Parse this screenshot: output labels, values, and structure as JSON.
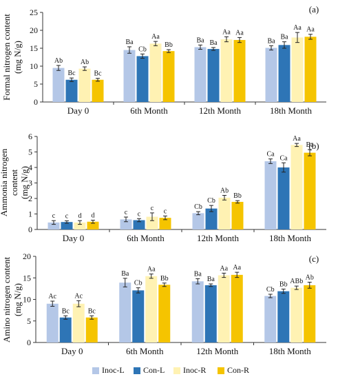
{
  "colors": {
    "Inoc-L": "#b4c7e7",
    "Con-L": "#2e75b6",
    "Inoc-R": "#fff2b3",
    "Con-R": "#f5c400"
  },
  "legend": [
    "Inoc-L",
    "Con-L",
    "Inoc-R",
    "Con-R"
  ],
  "chart_data": [
    {
      "type": "bar",
      "panel_label": "(a)",
      "ylabel": [
        "Formal nitrogen content",
        "(mg N/g)"
      ],
      "categories": [
        "Day 0",
        "6th Month",
        "12th Month",
        "18th Month"
      ],
      "ylim": [
        0,
        25
      ],
      "yticks": [
        0,
        5,
        10,
        15,
        20,
        25
      ],
      "grid": false,
      "series": [
        {
          "name": "Inoc-L",
          "values": [
            9.5,
            14.5,
            15.3,
            15.1
          ],
          "errors": [
            0.7,
            0.9,
            0.6,
            0.6
          ],
          "labels": [
            "Ab",
            "Ba",
            "Ba",
            "Ba"
          ]
        },
        {
          "name": "Con-L",
          "values": [
            6.2,
            12.8,
            14.8,
            15.9
          ],
          "errors": [
            0.5,
            0.6,
            0.4,
            0.9
          ],
          "labels": [
            "Bc",
            "Cb",
            "Ba",
            "Ba"
          ]
        },
        {
          "name": "Inoc-R",
          "values": [
            9.3,
            16.3,
            17.5,
            18.0
          ],
          "errors": [
            0.5,
            0.6,
            0.7,
            1.4
          ],
          "labels": [
            "Ab",
            "Aa",
            "Aa",
            "Aa"
          ]
        },
        {
          "name": "Con-R",
          "values": [
            6.2,
            14.2,
            17.3,
            18.2
          ],
          "errors": [
            0.4,
            0.4,
            0.7,
            0.7
          ],
          "labels": [
            "Bc",
            "Bb",
            "Aa",
            "Aa"
          ]
        }
      ]
    },
    {
      "type": "bar",
      "panel_label": "(b)",
      "ylabel": [
        "Ammonia nitrogen",
        "content",
        "(mg N/g)"
      ],
      "categories": [
        "Day 0",
        "6th Month",
        "12th Month",
        "18th Month"
      ],
      "ylim": [
        0,
        6
      ],
      "yticks": [
        0,
        1,
        2,
        3,
        4,
        5,
        6
      ],
      "grid": false,
      "series": [
        {
          "name": "Inoc-L",
          "values": [
            0.45,
            0.65,
            1.05,
            4.4
          ],
          "errors": [
            0.12,
            0.15,
            0.1,
            0.15
          ],
          "labels": [
            "c",
            "c",
            "Cb",
            "Ca"
          ]
        },
        {
          "name": "Con-L",
          "values": [
            0.48,
            0.6,
            1.35,
            4.0
          ],
          "errors": [
            0.08,
            0.1,
            0.2,
            0.3
          ],
          "labels": [
            "c",
            "c",
            "Cb",
            "Ca"
          ]
        },
        {
          "name": "Inoc-R",
          "values": [
            0.45,
            0.82,
            2.05,
            5.45
          ],
          "errors": [
            0.12,
            0.25,
            0.15,
            0.1
          ],
          "labels": [
            "d",
            "c",
            "Ab",
            "Aa"
          ]
        },
        {
          "name": "Con-R",
          "values": [
            0.5,
            0.75,
            1.78,
            4.95
          ],
          "errors": [
            0.1,
            0.12,
            0.08,
            0.2
          ],
          "labels": [
            "d",
            "c",
            "Bb",
            "Ba"
          ]
        }
      ]
    },
    {
      "type": "bar",
      "panel_label": "(c)",
      "ylabel": [
        "Amino nitrogen content",
        "(mg N/g)"
      ],
      "categories": [
        "Day 0",
        "6th Month",
        "12th Month",
        "18th Month"
      ],
      "ylim": [
        0,
        20
      ],
      "yticks": [
        0,
        5,
        10,
        15,
        20
      ],
      "grid": false,
      "series": [
        {
          "name": "Inoc-L",
          "values": [
            9.0,
            13.9,
            14.2,
            10.8
          ],
          "errors": [
            0.6,
            1.0,
            0.6,
            0.4
          ],
          "labels": [
            "Ac",
            "Ba",
            "Ba",
            "Cb"
          ]
        },
        {
          "name": "Con-L",
          "values": [
            5.8,
            12.1,
            13.3,
            11.9
          ],
          "errors": [
            0.4,
            0.6,
            0.3,
            0.5
          ],
          "labels": [
            "Bc",
            "Cb",
            "Ba",
            "Bb"
          ]
        },
        {
          "name": "Inoc-R",
          "values": [
            9.0,
            15.4,
            15.6,
            12.7
          ],
          "errors": [
            0.7,
            0.5,
            0.5,
            0.4
          ],
          "labels": [
            "Ac",
            "Aa",
            "Aa",
            "ABb"
          ]
        },
        {
          "name": "Con-R",
          "values": [
            5.8,
            13.4,
            15.7,
            13.3
          ],
          "errors": [
            0.4,
            0.4,
            0.6,
            0.7
          ],
          "labels": [
            "Bc",
            "Bb",
            "Aa",
            "Ab"
          ]
        }
      ]
    }
  ]
}
